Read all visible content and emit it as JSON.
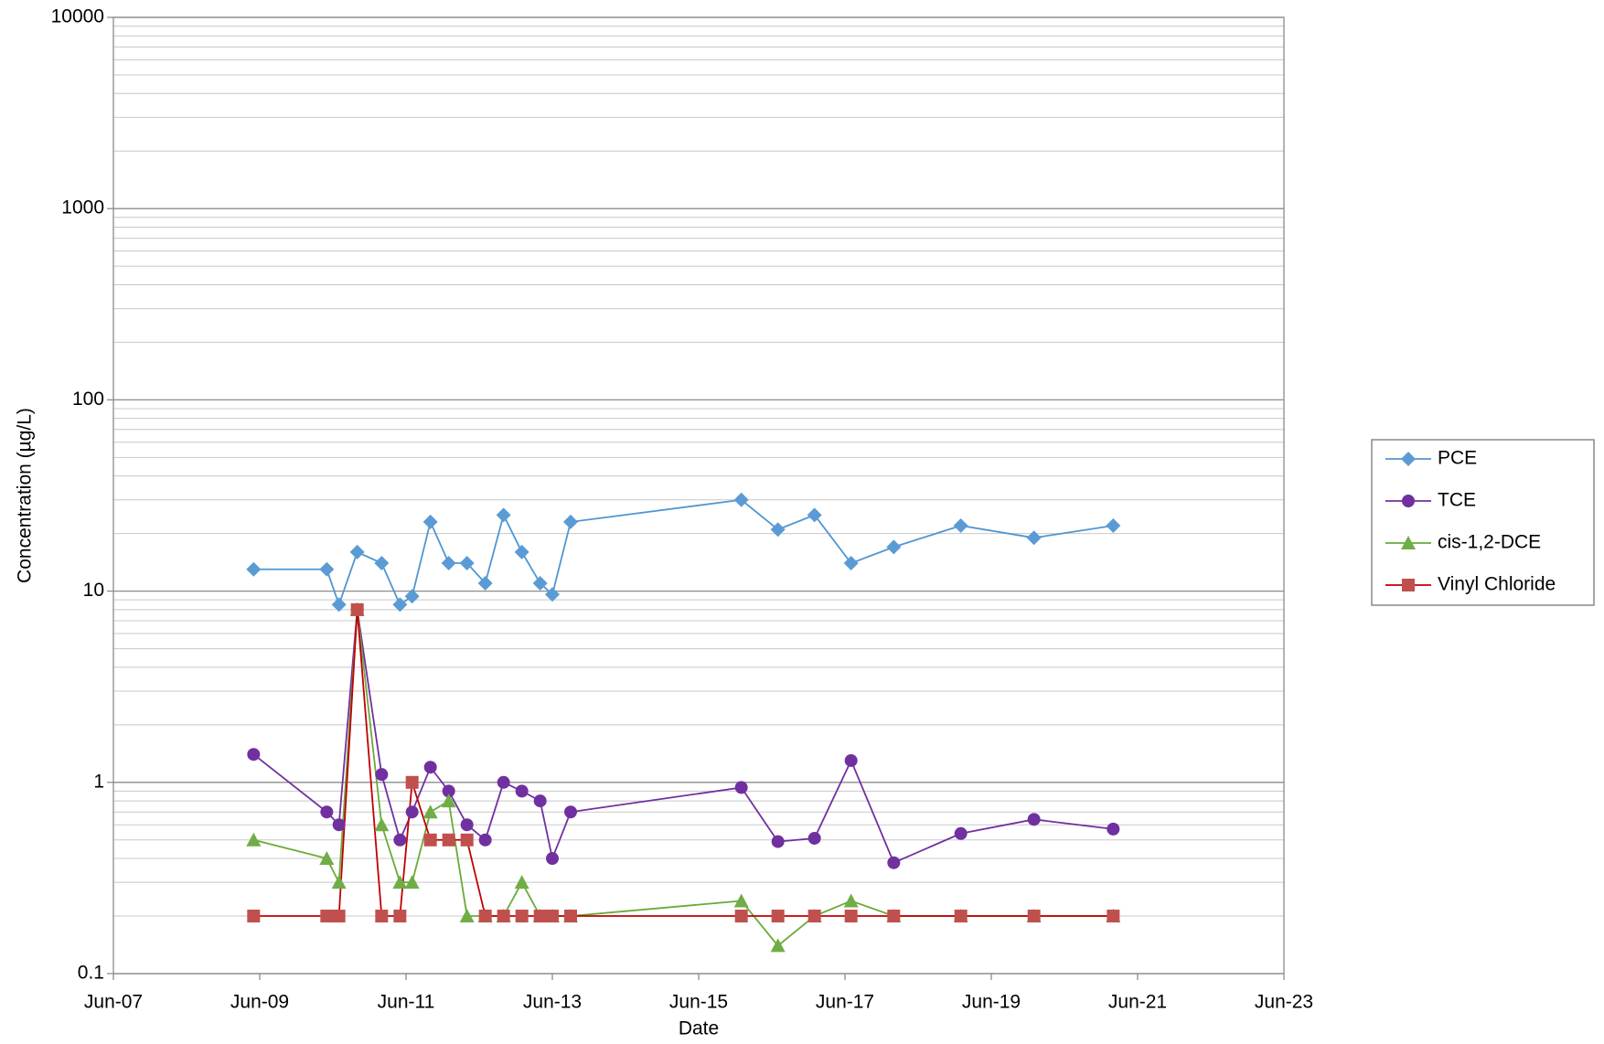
{
  "chart_data": {
    "type": "line",
    "x_label": "Date",
    "y_label": "Concentration (µg/L)",
    "x": [
      "2009-05",
      "2010-05",
      "2010-07",
      "2010-10",
      "2011-02",
      "2011-05",
      "2011-07",
      "2011-10",
      "2012-01",
      "2012-04",
      "2012-07",
      "2012-10",
      "2013-01",
      "2013-04",
      "2013-06",
      "2013-09",
      "2016-01",
      "2016-07",
      "2017-01",
      "2017-07",
      "2018-02",
      "2019-01",
      "2020-01",
      "2021-02"
    ],
    "series": [
      {
        "name": "PCE",
        "color": "#4f96d2",
        "marker_color": "#5b9bd5",
        "marker": "diamond",
        "values": [
          13,
          13,
          8.5,
          16,
          14,
          8.5,
          9.4,
          23,
          14,
          14,
          11,
          25,
          16,
          11,
          9.6,
          23,
          30,
          21,
          25,
          14,
          17,
          22,
          19,
          22
        ]
      },
      {
        "name": "TCE",
        "color": "#7030a0",
        "marker_color": "#7030a0",
        "marker": "circle",
        "values": [
          1.4,
          0.7,
          0.6,
          8,
          1.1,
          0.5,
          0.7,
          1.2,
          0.9,
          0.6,
          0.5,
          1.0,
          0.9,
          0.8,
          0.4,
          0.7,
          0.94,
          0.49,
          0.51,
          1.3,
          0.38,
          0.54,
          0.64,
          0.57
        ]
      },
      {
        "name": "cis-1,2-DCE",
        "color": "#6aaa3a",
        "marker_color": "#70ad47",
        "marker": "triangle",
        "values": [
          0.5,
          0.4,
          0.3,
          8,
          0.6,
          0.3,
          0.3,
          0.7,
          0.8,
          0.2,
          0.2,
          0.2,
          0.3,
          0.2,
          0.2,
          0.2,
          0.24,
          0.14,
          0.2,
          0.24,
          0.2,
          0.2,
          0.2,
          0.2
        ]
      },
      {
        "name": "Vinyl Chloride",
        "color": "#c00000",
        "marker_color": "#c0504d",
        "marker": "square",
        "values": [
          0.2,
          0.2,
          0.2,
          8,
          0.2,
          0.2,
          1.0,
          0.5,
          0.5,
          0.5,
          0.2,
          0.2,
          0.2,
          0.2,
          0.2,
          0.2,
          0.2,
          0.2,
          0.2,
          0.2,
          0.2,
          0.2,
          0.2,
          0.2
        ]
      }
    ],
    "xlim": [
      "2007-06",
      "2023-06"
    ],
    "xticks": [
      {
        "value": "2007-06",
        "label": "Jun-07"
      },
      {
        "value": "2009-06",
        "label": "Jun-09"
      },
      {
        "value": "2011-06",
        "label": "Jun-11"
      },
      {
        "value": "2013-06",
        "label": "Jun-13"
      },
      {
        "value": "2015-06",
        "label": "Jun-15"
      },
      {
        "value": "2017-06",
        "label": "Jun-17"
      },
      {
        "value": "2019-06",
        "label": "Jun-19"
      },
      {
        "value": "2021-06",
        "label": "Jun-21"
      },
      {
        "value": "2023-06",
        "label": "Jun-23"
      }
    ],
    "ylim": [
      0.1,
      10000
    ],
    "yticks": [
      0.1,
      1,
      10,
      100,
      1000,
      10000
    ],
    "y_log": true,
    "grid": true,
    "minor_grid": true,
    "legend": "right"
  }
}
